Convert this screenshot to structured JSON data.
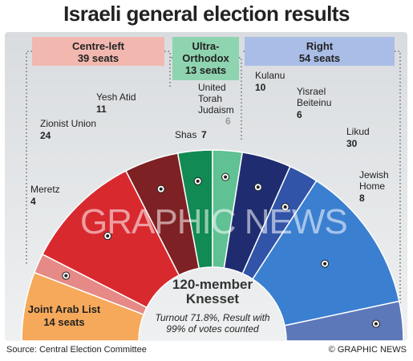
{
  "title": "Israeli general election results",
  "source": "Source: Central Election Committee",
  "credit": "© GRAPHIC NEWS",
  "watermark": "GRAPHIC NEWS",
  "blocs": [
    {
      "name": "Centre-left",
      "seats": "39 seats",
      "color": "#f2b8b0"
    },
    {
      "name": "Ultra-Orthodox",
      "seats": "13 seats",
      "color": "#8fd4b0"
    },
    {
      "name": "Right",
      "seats": "54 seats",
      "color": "#a9bde6"
    }
  ],
  "center": {
    "line1": "120-member",
    "line2": "Knesset",
    "note1": "Turnout 71.8%, Result with",
    "note2": "99% of votes counted"
  },
  "arab_label": {
    "name": "Joint Arab List",
    "seats": "14 seats"
  },
  "chart_data": {
    "type": "pie",
    "title": "Israeli general election results",
    "total_seats": 120,
    "parties": [
      {
        "name": "Joint Arab List",
        "seats": 14,
        "color": "#f6a95a"
      },
      {
        "name": "Meretz",
        "seats": 4,
        "color": "#e58a86"
      },
      {
        "name": "Zionist Union",
        "seats": 24,
        "color": "#d8292f"
      },
      {
        "name": "Yesh Atid",
        "seats": 11,
        "color": "#7e2124"
      },
      {
        "name": "Shas",
        "seats": 7,
        "color": "#118a53"
      },
      {
        "name": "United Torah Judaism",
        "seats": 6,
        "color": "#5fc194"
      },
      {
        "name": "Kulanu",
        "seats": 10,
        "color": "#1f2d70"
      },
      {
        "name": "Yisrael Beiteinu",
        "seats": 6,
        "color": "#3154a8"
      },
      {
        "name": "Likud",
        "seats": 30,
        "color": "#3b7fd0"
      },
      {
        "name": "Jewish Home",
        "seats": 8,
        "color": "#5c78b8"
      }
    ],
    "labels": {
      "Meretz": [
        "Meretz"
      ],
      "Zionist Union": [
        "Zionist Union"
      ],
      "Yesh Atid": [
        "Yesh Atid"
      ],
      "Shas": [
        "Shas"
      ],
      "United Torah Judaism": [
        "United",
        "Torah",
        "Judaism"
      ],
      "Kulanu": [
        "Kulanu"
      ],
      "Yisrael Beiteinu": [
        "Yisrael",
        "Beiteinu"
      ],
      "Likud": [
        "Likud"
      ],
      "Jewish Home": [
        "Jewish",
        "Home"
      ]
    }
  }
}
